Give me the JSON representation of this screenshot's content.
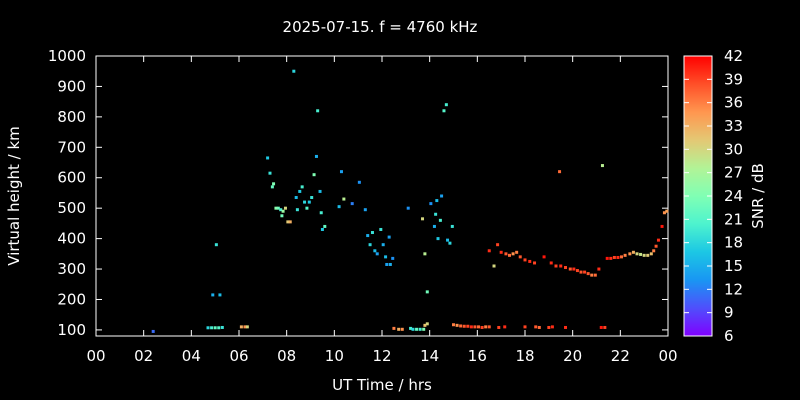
{
  "chart_data": {
    "type": "scatter",
    "title": "2025-07-15. f = 4760 kHz",
    "xlabel": "UT Time / hrs",
    "ylabel": "Virtual height / km",
    "xlim": [
      0,
      24
    ],
    "ylim": [
      80,
      1000
    ],
    "xticks": [
      "00",
      "02",
      "04",
      "06",
      "08",
      "10",
      "12",
      "14",
      "16",
      "18",
      "20",
      "22",
      "00"
    ],
    "yticks": [
      100,
      200,
      300,
      400,
      500,
      600,
      700,
      800,
      900,
      1000
    ],
    "colorbar": {
      "label": "SNR / dB",
      "range": [
        6,
        42
      ],
      "ticks": [
        6,
        9,
        12,
        15,
        18,
        21,
        24,
        27,
        30,
        33,
        36,
        39,
        42
      ],
      "colors": [
        "#8000ff",
        "#4f4ffc",
        "#1996f3",
        "#1cc7e4",
        "#4df3ce",
        "#80ffb4",
        "#b2f396",
        "#e4c874",
        "#ff964f",
        "#ff4f28",
        "#ff0000"
      ]
    },
    "background": "#000000",
    "grid": false,
    "points": [
      [
        2.4,
        95,
        11
      ],
      [
        4.7,
        107,
        18
      ],
      [
        4.85,
        107,
        20
      ],
      [
        5.0,
        107,
        22
      ],
      [
        5.15,
        107,
        21
      ],
      [
        5.3,
        108,
        19
      ],
      [
        4.9,
        215,
        15
      ],
      [
        5.2,
        215,
        16
      ],
      [
        5.05,
        380,
        19
      ],
      [
        6.1,
        110,
        33
      ],
      [
        6.25,
        110,
        35
      ],
      [
        6.35,
        110,
        30
      ],
      [
        7.2,
        665,
        17
      ],
      [
        7.3,
        615,
        19
      ],
      [
        7.4,
        570,
        22
      ],
      [
        7.45,
        580,
        24
      ],
      [
        7.55,
        500,
        25
      ],
      [
        7.65,
        500,
        23
      ],
      [
        7.75,
        495,
        20
      ],
      [
        7.85,
        490,
        26
      ],
      [
        7.8,
        475,
        23
      ],
      [
        7.95,
        500,
        30
      ],
      [
        8.05,
        455,
        31
      ],
      [
        8.15,
        455,
        33
      ],
      [
        8.3,
        950,
        18
      ],
      [
        8.4,
        535,
        16
      ],
      [
        8.45,
        495,
        19
      ],
      [
        8.55,
        555,
        17
      ],
      [
        8.65,
        570,
        20
      ],
      [
        8.75,
        520,
        18
      ],
      [
        8.85,
        500,
        21
      ],
      [
        8.95,
        520,
        17
      ],
      [
        9.05,
        535,
        19
      ],
      [
        9.15,
        610,
        24
      ],
      [
        9.25,
        670,
        15
      ],
      [
        9.3,
        820,
        20
      ],
      [
        9.4,
        555,
        16
      ],
      [
        9.45,
        485,
        20
      ],
      [
        9.5,
        430,
        17
      ],
      [
        9.6,
        440,
        22
      ],
      [
        10.2,
        505,
        16
      ],
      [
        10.3,
        620,
        14
      ],
      [
        10.4,
        530,
        28
      ],
      [
        10.75,
        515,
        12
      ],
      [
        11.05,
        585,
        13
      ],
      [
        11.3,
        495,
        14
      ],
      [
        11.4,
        410,
        15
      ],
      [
        11.5,
        380,
        18
      ],
      [
        11.6,
        420,
        19
      ],
      [
        11.7,
        360,
        16
      ],
      [
        11.8,
        350,
        14
      ],
      [
        11.95,
        430,
        19
      ],
      [
        12.05,
        380,
        15
      ],
      [
        12.15,
        340,
        16
      ],
      [
        12.2,
        315,
        14
      ],
      [
        12.35,
        315,
        15
      ],
      [
        12.45,
        335,
        13
      ],
      [
        12.3,
        405,
        14
      ],
      [
        12.5,
        105,
        36
      ],
      [
        12.7,
        102,
        33
      ],
      [
        12.85,
        102,
        35
      ],
      [
        13.1,
        500,
        13
      ],
      [
        13.2,
        105,
        20
      ],
      [
        13.3,
        102,
        18
      ],
      [
        13.45,
        102,
        22
      ],
      [
        13.6,
        102,
        20
      ],
      [
        13.75,
        102,
        24
      ],
      [
        13.8,
        115,
        32
      ],
      [
        13.9,
        120,
        30
      ],
      [
        13.7,
        465,
        30
      ],
      [
        13.8,
        350,
        28
      ],
      [
        13.9,
        225,
        23
      ],
      [
        14.05,
        515,
        13
      ],
      [
        14.2,
        440,
        15
      ],
      [
        14.25,
        480,
        19
      ],
      [
        14.3,
        525,
        16
      ],
      [
        14.35,
        400,
        17
      ],
      [
        14.45,
        460,
        20
      ],
      [
        14.5,
        540,
        14
      ],
      [
        14.6,
        820,
        21
      ],
      [
        14.7,
        840,
        20
      ],
      [
        14.75,
        395,
        16
      ],
      [
        14.85,
        385,
        18
      ],
      [
        14.95,
        440,
        19
      ],
      [
        15.0,
        117,
        36
      ],
      [
        15.15,
        115,
        35
      ],
      [
        15.3,
        113,
        37
      ],
      [
        15.45,
        112,
        38
      ],
      [
        15.6,
        112,
        39
      ],
      [
        15.75,
        110,
        40
      ],
      [
        15.9,
        110,
        38
      ],
      [
        16.05,
        110,
        37
      ],
      [
        16.2,
        108,
        39
      ],
      [
        16.35,
        110,
        36
      ],
      [
        16.5,
        110,
        38
      ],
      [
        16.9,
        108,
        39
      ],
      [
        17.15,
        110,
        40
      ],
      [
        18.0,
        110,
        39
      ],
      [
        18.45,
        110,
        38
      ],
      [
        18.6,
        108,
        37
      ],
      [
        19.0,
        108,
        39
      ],
      [
        19.15,
        110,
        40
      ],
      [
        19.7,
        108,
        40
      ],
      [
        21.2,
        108,
        41
      ],
      [
        21.35,
        108,
        39
      ],
      [
        16.5,
        360,
        40
      ],
      [
        16.7,
        310,
        30
      ],
      [
        16.85,
        380,
        39
      ],
      [
        17.0,
        355,
        40
      ],
      [
        17.2,
        350,
        38
      ],
      [
        17.35,
        345,
        37
      ],
      [
        17.5,
        350,
        35
      ],
      [
        17.65,
        355,
        36
      ],
      [
        17.8,
        340,
        38
      ],
      [
        18.0,
        330,
        39
      ],
      [
        18.2,
        325,
        40
      ],
      [
        18.4,
        320,
        39
      ],
      [
        18.8,
        340,
        41
      ],
      [
        19.1,
        320,
        40
      ],
      [
        19.3,
        310,
        39
      ],
      [
        19.5,
        310,
        40
      ],
      [
        19.7,
        305,
        39
      ],
      [
        19.9,
        300,
        38
      ],
      [
        20.05,
        300,
        40
      ],
      [
        20.2,
        295,
        39
      ],
      [
        20.35,
        290,
        38
      ],
      [
        20.5,
        290,
        39
      ],
      [
        20.65,
        285,
        38
      ],
      [
        20.8,
        280,
        36
      ],
      [
        20.95,
        280,
        37
      ],
      [
        21.1,
        300,
        40
      ],
      [
        19.45,
        620,
        37
      ],
      [
        21.25,
        640,
        28
      ],
      [
        21.45,
        335,
        41
      ],
      [
        21.6,
        335,
        40
      ],
      [
        21.75,
        338,
        39
      ],
      [
        21.9,
        338,
        40
      ],
      [
        22.05,
        340,
        37
      ],
      [
        22.2,
        345,
        36
      ],
      [
        22.4,
        350,
        35
      ],
      [
        22.55,
        355,
        33
      ],
      [
        22.7,
        350,
        30
      ],
      [
        22.85,
        348,
        29
      ],
      [
        23.0,
        345,
        30
      ],
      [
        23.15,
        345,
        31
      ],
      [
        23.3,
        350,
        32
      ],
      [
        23.4,
        360,
        36
      ],
      [
        23.5,
        375,
        38
      ],
      [
        23.6,
        395,
        40
      ],
      [
        23.75,
        440,
        41
      ],
      [
        23.85,
        485,
        35
      ],
      [
        23.95,
        490,
        34
      ]
    ]
  }
}
